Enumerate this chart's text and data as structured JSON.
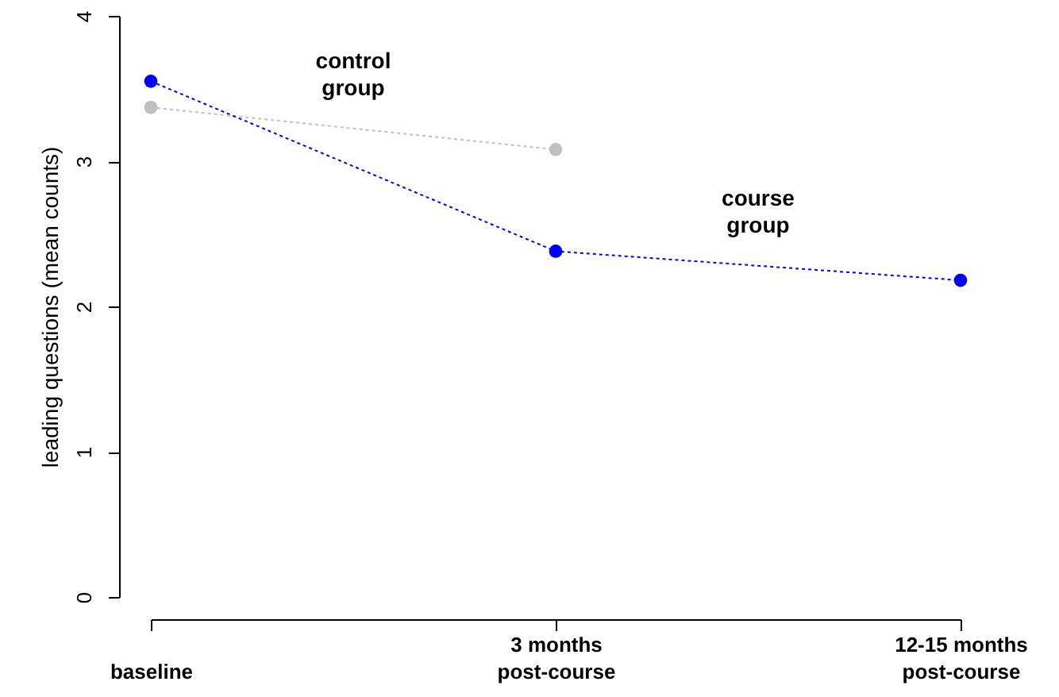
{
  "chart_data": {
    "type": "line",
    "ylabel": "leading questions (mean counts)",
    "categories": [
      "baseline",
      "3 months\npost-course",
      "12-15 months\npost-course"
    ],
    "ylim": [
      0,
      4
    ],
    "yticks": [
      0,
      1,
      2,
      3,
      4
    ],
    "marker": "circle",
    "line_style": "dotted",
    "series": [
      {
        "name": "control group",
        "color": "#c0c0c0",
        "values": [
          3.37,
          3.08,
          null
        ]
      },
      {
        "name": "course group",
        "color": "#0000ff",
        "values": [
          3.55,
          2.38,
          2.18
        ]
      }
    ]
  }
}
